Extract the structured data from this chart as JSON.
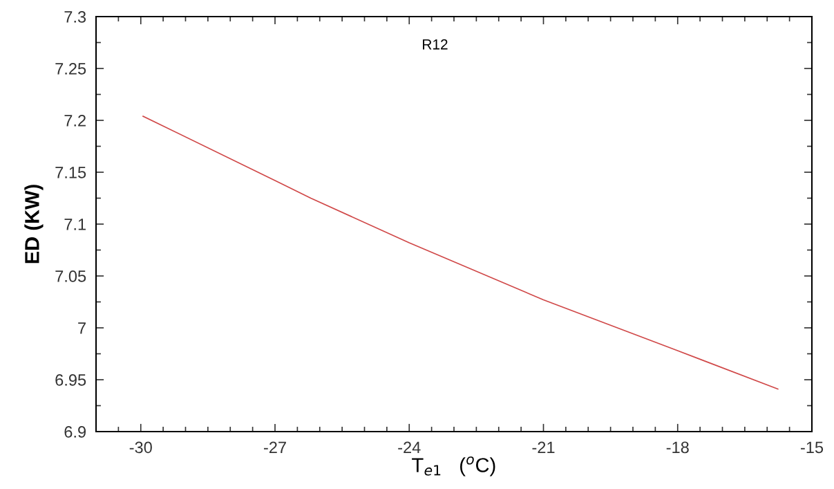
{
  "chart_data": {
    "type": "line",
    "xlabel": "T$_{e1}$   ($^{o}$C)",
    "ylabel": "ED (KW)",
    "annotations": [
      "R12"
    ],
    "x": [
      -29.95,
      -27,
      -26.2,
      -24,
      -21,
      -18,
      -15.76
    ],
    "series": [
      {
        "color": "#d04848",
        "values": [
          7.204,
          7.142,
          7.125,
          7.082,
          7.027,
          6.978,
          6.941
        ]
      }
    ],
    "xlim": [
      -31,
      -15
    ],
    "xticks": [
      -30,
      -27,
      -24,
      -21,
      -18,
      -15
    ],
    "ylim": [
      6.9,
      7.3
    ],
    "yticks": [
      6.9,
      6.95,
      7,
      7.05,
      7.1,
      7.15,
      7.2,
      7.25,
      7.3
    ],
    "grid": false,
    "legend": false,
    "marker": "none",
    "line_style": "solid"
  }
}
